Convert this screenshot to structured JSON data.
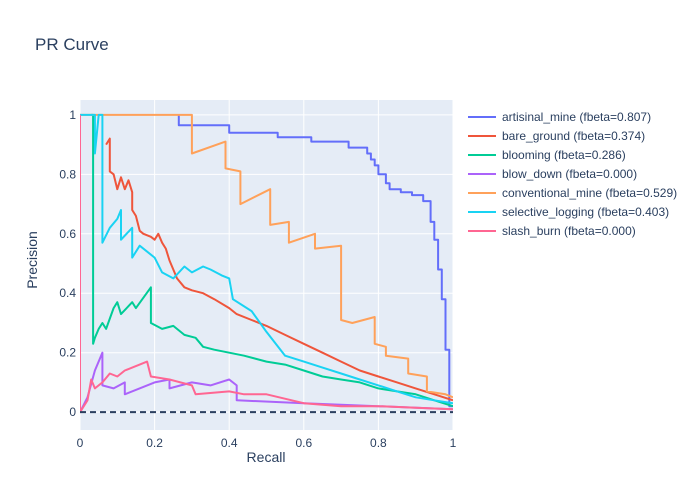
{
  "chart_data": {
    "type": "line",
    "title": "PR Curve",
    "xlabel": "Recall",
    "ylabel": "Precision",
    "xlim": [
      0,
      1
    ],
    "ylim": [
      -0.06,
      1.05
    ],
    "xticks": [
      0,
      0.2,
      0.4,
      0.6,
      0.8,
      1
    ],
    "xtick_labels": [
      "0",
      "0.2",
      "0.4",
      "0.6",
      "0.8",
      "1"
    ],
    "yticks": [
      0,
      0.2,
      0.4,
      0.6,
      0.8,
      1
    ],
    "ytick_labels": [
      "0",
      "0.2",
      "0.4",
      "0.6",
      "0.8",
      "1"
    ],
    "grid": true,
    "legend_position": "right",
    "baseline": {
      "y": 0,
      "style": "dashed",
      "color": "#2a3f5f"
    },
    "series": [
      {
        "name": "artisinal_mine (fbeta=0.807)",
        "color": "#636efa",
        "points": [
          [
            0.265,
            1.0
          ],
          [
            0.265,
            0.965
          ],
          [
            0.4,
            0.965
          ],
          [
            0.4,
            0.94
          ],
          [
            0.53,
            0.94
          ],
          [
            0.53,
            0.925
          ],
          [
            0.62,
            0.925
          ],
          [
            0.62,
            0.91
          ],
          [
            0.72,
            0.91
          ],
          [
            0.72,
            0.89
          ],
          [
            0.77,
            0.89
          ],
          [
            0.77,
            0.87
          ],
          [
            0.78,
            0.87
          ],
          [
            0.78,
            0.85
          ],
          [
            0.79,
            0.85
          ],
          [
            0.79,
            0.83
          ],
          [
            0.8,
            0.83
          ],
          [
            0.8,
            0.8
          ],
          [
            0.82,
            0.8
          ],
          [
            0.82,
            0.77
          ],
          [
            0.83,
            0.77
          ],
          [
            0.83,
            0.75
          ],
          [
            0.86,
            0.75
          ],
          [
            0.86,
            0.74
          ],
          [
            0.89,
            0.74
          ],
          [
            0.89,
            0.73
          ],
          [
            0.92,
            0.73
          ],
          [
            0.92,
            0.71
          ],
          [
            0.94,
            0.71
          ],
          [
            0.94,
            0.64
          ],
          [
            0.95,
            0.64
          ],
          [
            0.95,
            0.58
          ],
          [
            0.96,
            0.58
          ],
          [
            0.96,
            0.48
          ],
          [
            0.97,
            0.48
          ],
          [
            0.97,
            0.38
          ],
          [
            0.98,
            0.38
          ],
          [
            0.98,
            0.21
          ],
          [
            0.99,
            0.21
          ],
          [
            0.99,
            0.02
          ],
          [
            1.0,
            0.02
          ]
        ]
      },
      {
        "name": "bare_ground (fbeta=0.374)",
        "color": "#ef553b",
        "points": [
          [
            0.07,
            0.9
          ],
          [
            0.08,
            0.92
          ],
          [
            0.08,
            0.81
          ],
          [
            0.09,
            0.8
          ],
          [
            0.1,
            0.75
          ],
          [
            0.11,
            0.79
          ],
          [
            0.12,
            0.75
          ],
          [
            0.13,
            0.78
          ],
          [
            0.14,
            0.74
          ],
          [
            0.14,
            0.68
          ],
          [
            0.15,
            0.66
          ],
          [
            0.16,
            0.61
          ],
          [
            0.17,
            0.6
          ],
          [
            0.19,
            0.59
          ],
          [
            0.2,
            0.58
          ],
          [
            0.21,
            0.6
          ],
          [
            0.22,
            0.57
          ],
          [
            0.23,
            0.55
          ],
          [
            0.24,
            0.51
          ],
          [
            0.25,
            0.48
          ],
          [
            0.26,
            0.45
          ],
          [
            0.28,
            0.42
          ],
          [
            0.3,
            0.41
          ],
          [
            0.33,
            0.4
          ],
          [
            0.36,
            0.38
          ],
          [
            0.4,
            0.35
          ],
          [
            0.42,
            0.33
          ],
          [
            0.46,
            0.31
          ],
          [
            0.5,
            0.29
          ],
          [
            0.55,
            0.26
          ],
          [
            0.6,
            0.23
          ],
          [
            0.65,
            0.2
          ],
          [
            0.7,
            0.17
          ],
          [
            0.75,
            0.14
          ],
          [
            0.8,
            0.12
          ],
          [
            0.85,
            0.1
          ],
          [
            0.9,
            0.08
          ],
          [
            0.95,
            0.06
          ],
          [
            1.0,
            0.04
          ]
        ]
      },
      {
        "name": "blooming (fbeta=0.286)",
        "color": "#00cc96",
        "points": [
          [
            0.03,
            1.0
          ],
          [
            0.035,
            1.0
          ],
          [
            0.035,
            0.23
          ],
          [
            0.04,
            0.25
          ],
          [
            0.05,
            0.28
          ],
          [
            0.06,
            0.3
          ],
          [
            0.07,
            0.28
          ],
          [
            0.09,
            0.35
          ],
          [
            0.1,
            0.37
          ],
          [
            0.11,
            0.33
          ],
          [
            0.14,
            0.37
          ],
          [
            0.15,
            0.35
          ],
          [
            0.19,
            0.42
          ],
          [
            0.19,
            0.3
          ],
          [
            0.22,
            0.28
          ],
          [
            0.25,
            0.29
          ],
          [
            0.28,
            0.26
          ],
          [
            0.31,
            0.25
          ],
          [
            0.33,
            0.22
          ],
          [
            0.36,
            0.21
          ],
          [
            0.4,
            0.2
          ],
          [
            0.44,
            0.19
          ],
          [
            0.5,
            0.17
          ],
          [
            0.55,
            0.16
          ],
          [
            0.6,
            0.14
          ],
          [
            0.65,
            0.12
          ],
          [
            0.7,
            0.11
          ],
          [
            0.75,
            0.1
          ],
          [
            0.8,
            0.08
          ],
          [
            0.85,
            0.07
          ],
          [
            0.9,
            0.06
          ],
          [
            0.95,
            0.04
          ],
          [
            1.0,
            0.02
          ]
        ]
      },
      {
        "name": "blow_down (fbeta=0.000)",
        "color": "#ab63fa",
        "points": [
          [
            0.0,
            0.0
          ],
          [
            0.02,
            0.05
          ],
          [
            0.04,
            0.14
          ],
          [
            0.06,
            0.2
          ],
          [
            0.06,
            0.09
          ],
          [
            0.09,
            0.08
          ],
          [
            0.12,
            0.1
          ],
          [
            0.12,
            0.06
          ],
          [
            0.18,
            0.09
          ],
          [
            0.2,
            0.1
          ],
          [
            0.24,
            0.11
          ],
          [
            0.24,
            0.08
          ],
          [
            0.3,
            0.1
          ],
          [
            0.35,
            0.09
          ],
          [
            0.4,
            0.11
          ],
          [
            0.42,
            0.09
          ],
          [
            0.42,
            0.04
          ],
          [
            0.6,
            0.03
          ],
          [
            0.8,
            0.02
          ],
          [
            1.0,
            0.01
          ]
        ]
      },
      {
        "name": "conventional_mine (fbeta=0.529)",
        "color": "#ffa15a",
        "points": [
          [
            0.0,
            1.0
          ],
          [
            0.3,
            1.0
          ],
          [
            0.3,
            0.87
          ],
          [
            0.39,
            0.91
          ],
          [
            0.39,
            0.82
          ],
          [
            0.43,
            0.81
          ],
          [
            0.43,
            0.7
          ],
          [
            0.51,
            0.75
          ],
          [
            0.51,
            0.63
          ],
          [
            0.56,
            0.64
          ],
          [
            0.56,
            0.57
          ],
          [
            0.63,
            0.6
          ],
          [
            0.63,
            0.55
          ],
          [
            0.7,
            0.56
          ],
          [
            0.7,
            0.31
          ],
          [
            0.73,
            0.3
          ],
          [
            0.79,
            0.32
          ],
          [
            0.79,
            0.23
          ],
          [
            0.82,
            0.22
          ],
          [
            0.82,
            0.19
          ],
          [
            0.88,
            0.18
          ],
          [
            0.88,
            0.13
          ],
          [
            0.93,
            0.12
          ],
          [
            0.93,
            0.07
          ],
          [
            0.98,
            0.06
          ],
          [
            1.0,
            0.05
          ]
        ]
      },
      {
        "name": "selective_logging (fbeta=0.403)",
        "color": "#19d3f3",
        "points": [
          [
            0.0,
            1.0
          ],
          [
            0.04,
            1.0
          ],
          [
            0.04,
            0.87
          ],
          [
            0.05,
            1.0
          ],
          [
            0.06,
            1.0
          ],
          [
            0.06,
            0.57
          ],
          [
            0.08,
            0.62
          ],
          [
            0.1,
            0.65
          ],
          [
            0.11,
            0.68
          ],
          [
            0.11,
            0.58
          ],
          [
            0.14,
            0.62
          ],
          [
            0.14,
            0.52
          ],
          [
            0.16,
            0.56
          ],
          [
            0.2,
            0.52
          ],
          [
            0.22,
            0.47
          ],
          [
            0.25,
            0.45
          ],
          [
            0.28,
            0.49
          ],
          [
            0.3,
            0.47
          ],
          [
            0.33,
            0.49
          ],
          [
            0.35,
            0.48
          ],
          [
            0.38,
            0.46
          ],
          [
            0.4,
            0.45
          ],
          [
            0.41,
            0.38
          ],
          [
            0.46,
            0.34
          ],
          [
            0.5,
            0.27
          ],
          [
            0.55,
            0.19
          ],
          [
            0.6,
            0.17
          ],
          [
            0.65,
            0.15
          ],
          [
            0.7,
            0.13
          ],
          [
            0.75,
            0.11
          ],
          [
            0.8,
            0.09
          ],
          [
            0.85,
            0.07
          ],
          [
            0.9,
            0.05
          ],
          [
            0.95,
            0.04
          ],
          [
            1.0,
            0.03
          ]
        ]
      },
      {
        "name": "slash_burn (fbeta=0.000)",
        "color": "#ff6692",
        "points": [
          [
            0.0,
            1.0
          ],
          [
            0.0,
            0.0
          ],
          [
            0.02,
            0.04
          ],
          [
            0.03,
            0.11
          ],
          [
            0.04,
            0.08
          ],
          [
            0.06,
            0.1
          ],
          [
            0.08,
            0.13
          ],
          [
            0.1,
            0.12
          ],
          [
            0.12,
            0.14
          ],
          [
            0.14,
            0.15
          ],
          [
            0.16,
            0.16
          ],
          [
            0.18,
            0.17
          ],
          [
            0.19,
            0.12
          ],
          [
            0.24,
            0.11
          ],
          [
            0.3,
            0.09
          ],
          [
            0.31,
            0.06
          ],
          [
            0.4,
            0.07
          ],
          [
            0.44,
            0.06
          ],
          [
            0.5,
            0.06
          ],
          [
            0.6,
            0.03
          ],
          [
            0.7,
            0.02
          ],
          [
            0.8,
            0.02
          ],
          [
            0.9,
            0.015
          ],
          [
            1.0,
            0.01
          ]
        ]
      }
    ]
  }
}
